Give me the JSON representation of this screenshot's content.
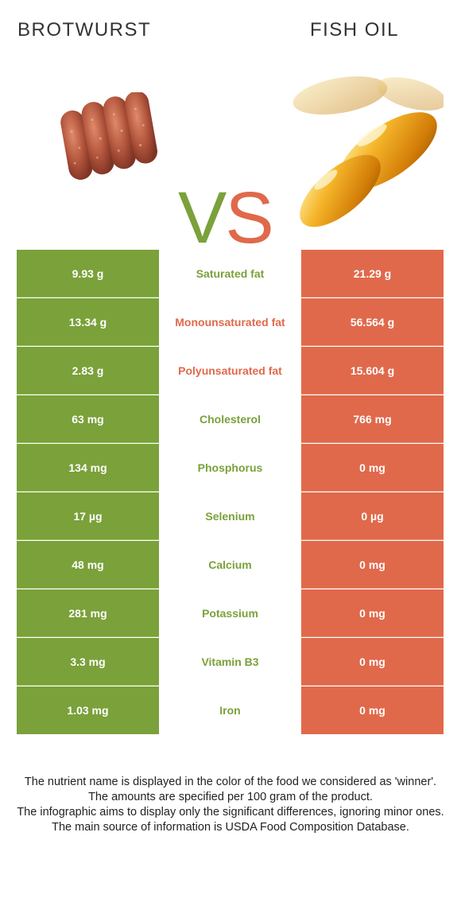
{
  "food1": {
    "name": "BROTWURST",
    "color": "#7aa13a"
  },
  "food2": {
    "name": "FISH OIL",
    "color": "#e0694b"
  },
  "vs": {
    "v": "V",
    "s": "S"
  },
  "rows": [
    {
      "nutrient": "Saturated fat",
      "left": "9.93 g",
      "right": "21.29 g",
      "winner": "left"
    },
    {
      "nutrient": "Monounsaturated fat",
      "left": "13.34 g",
      "right": "56.564 g",
      "winner": "right"
    },
    {
      "nutrient": "Polyunsaturated fat",
      "left": "2.83 g",
      "right": "15.604 g",
      "winner": "right"
    },
    {
      "nutrient": "Cholesterol",
      "left": "63 mg",
      "right": "766 mg",
      "winner": "left"
    },
    {
      "nutrient": "Phosphorus",
      "left": "134 mg",
      "right": "0 mg",
      "winner": "left"
    },
    {
      "nutrient": "Selenium",
      "left": "17 µg",
      "right": "0 µg",
      "winner": "left"
    },
    {
      "nutrient": "Calcium",
      "left": "48 mg",
      "right": "0 mg",
      "winner": "left"
    },
    {
      "nutrient": "Potassium",
      "left": "281 mg",
      "right": "0 mg",
      "winner": "left"
    },
    {
      "nutrient": "Vitamin B3",
      "left": "3.3 mg",
      "right": "0 mg",
      "winner": "left"
    },
    {
      "nutrient": "Iron",
      "left": "1.03 mg",
      "right": "0 mg",
      "winner": "left"
    }
  ],
  "footer": [
    "The nutrient name is displayed in the color of the food we considered as 'winner'.",
    "The amounts are specified per 100 gram of the product.",
    "The infographic aims to display only the significant differences, ignoring minor ones.",
    "The main source of information is USDA Food Composition Database."
  ]
}
